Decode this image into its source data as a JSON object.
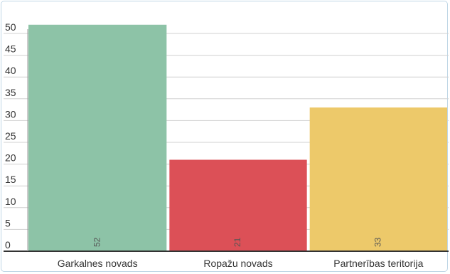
{
  "chart_data": {
    "type": "bar",
    "categories": [
      "Garkalnes novads",
      "Ropažu novads",
      "Partnerības teritorija"
    ],
    "values": [
      52,
      21,
      33
    ],
    "data_labels": [
      "52",
      "21",
      "33"
    ],
    "colors": [
      "#8dc3a7",
      "#dc5057",
      "#edc96a"
    ],
    "ylim": [
      0,
      50
    ],
    "yticks": [
      0,
      5,
      10,
      15,
      20,
      25,
      30,
      35,
      40,
      45,
      50
    ],
    "grid": true,
    "title": "",
    "xlabel": "",
    "ylabel": "",
    "legend": "none"
  }
}
